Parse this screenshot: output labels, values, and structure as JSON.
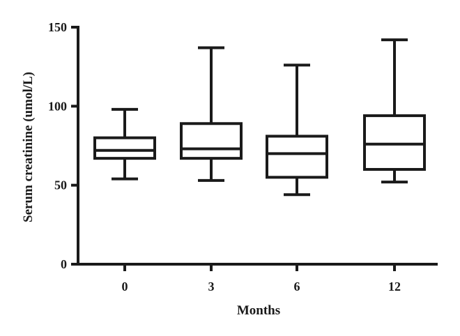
{
  "chart_data": {
    "type": "box",
    "title": "",
    "xlabel": "Months",
    "ylabel": "Serum creatinine (umol/L)",
    "ylim": [
      0,
      150
    ],
    "yticks": [
      0,
      50,
      100,
      150
    ],
    "grid": false,
    "categories": [
      "0",
      "3",
      "6",
      "12"
    ],
    "boxes": [
      {
        "category": "0",
        "min": 54,
        "q1": 67,
        "median": 72,
        "q3": 80,
        "max": 98
      },
      {
        "category": "3",
        "min": 53,
        "q1": 67,
        "median": 73,
        "q3": 89,
        "max": 137
      },
      {
        "category": "6",
        "min": 44,
        "q1": 55,
        "median": 70,
        "q3": 81,
        "max": 126
      },
      {
        "category": "12",
        "min": 52,
        "q1": 60,
        "median": 76,
        "q3": 94,
        "max": 142
      }
    ],
    "colors": {
      "stroke": "#1a1a1a",
      "fill": "#ffffff"
    }
  }
}
